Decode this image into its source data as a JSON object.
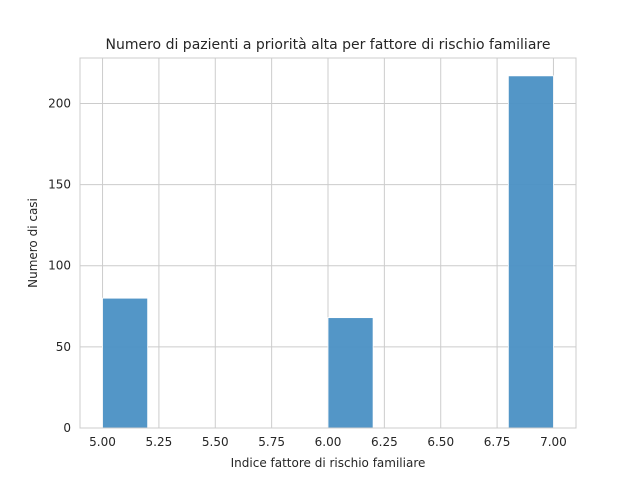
{
  "chart_data": {
    "type": "bar",
    "title": "Numero di pazienti a priorità alta per fattore di rischio familiare",
    "xlabel": "Indice fattore di rischio familiare",
    "ylabel": "Numero di casi",
    "xlim": [
      4.9,
      7.1
    ],
    "ylim": [
      0,
      228
    ],
    "x_ticks": [
      "5.00",
      "5.25",
      "5.50",
      "5.75",
      "6.00",
      "6.25",
      "6.50",
      "6.75",
      "7.00"
    ],
    "y_ticks": [
      "0",
      "50",
      "100",
      "150",
      "200"
    ],
    "grid": true,
    "bars": [
      {
        "x_start": 5.0,
        "x_end": 5.2,
        "value": 80
      },
      {
        "x_start": 6.0,
        "x_end": 6.2,
        "value": 68
      },
      {
        "x_start": 6.8,
        "x_end": 7.0,
        "value": 217
      }
    ],
    "colors": {
      "bar": "#4a90c4",
      "grid": "#cccccc",
      "axis": "#cccccc"
    }
  }
}
